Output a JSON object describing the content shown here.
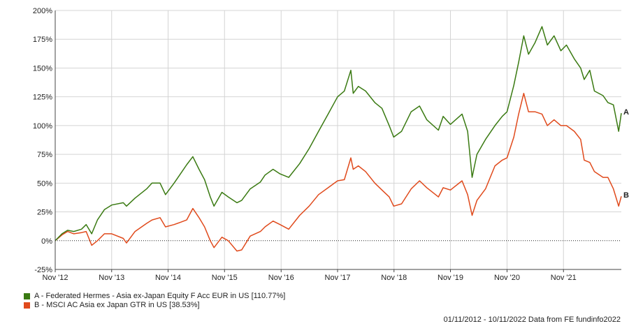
{
  "chart_data": {
    "type": "line",
    "title": "",
    "xlabel": "",
    "ylabel": "",
    "ylim": [
      -25,
      200
    ],
    "y_ticks": [
      -25,
      0,
      25,
      50,
      75,
      100,
      125,
      150,
      175,
      200
    ],
    "y_tick_labels": [
      "-25%",
      "0%",
      "25%",
      "50%",
      "75%",
      "100%",
      "125%",
      "150%",
      "175%",
      "200%"
    ],
    "x_range": [
      "2012-11-01",
      "2022-11-10"
    ],
    "x_ticks": [
      {
        "date": "2012-11-01",
        "label": "Nov '12"
      },
      {
        "date": "2013-11-01",
        "label": "Nov '13"
      },
      {
        "date": "2014-11-01",
        "label": "Nov '14"
      },
      {
        "date": "2015-11-01",
        "label": "Nov '15"
      },
      {
        "date": "2016-11-01",
        "label": "Nov '16"
      },
      {
        "date": "2017-11-01",
        "label": "Nov '17"
      },
      {
        "date": "2018-11-01",
        "label": "Nov '18"
      },
      {
        "date": "2019-11-01",
        "label": "Nov '19"
      },
      {
        "date": "2020-11-01",
        "label": "Nov '20"
      },
      {
        "date": "2021-11-01",
        "label": "Nov '21"
      }
    ],
    "grid": true,
    "zero_line": "dotted",
    "series": [
      {
        "name": "A - Federated Hermes - Asia ex-Japan Equity F Acc EUR in US [110.77%]",
        "end_label": "A",
        "color": "#3a7a12",
        "points": [
          [
            "2012-11-01",
            0
          ],
          [
            "2012-12-15",
            6
          ],
          [
            "2013-01-20",
            9
          ],
          [
            "2013-03-01",
            8
          ],
          [
            "2013-04-20",
            10
          ],
          [
            "2013-05-20",
            14
          ],
          [
            "2013-06-25",
            6
          ],
          [
            "2013-08-01",
            18
          ],
          [
            "2013-09-15",
            27
          ],
          [
            "2013-11-01",
            31
          ],
          [
            "2014-01-15",
            33
          ],
          [
            "2014-02-05",
            30
          ],
          [
            "2014-04-01",
            37
          ],
          [
            "2014-06-15",
            45
          ],
          [
            "2014-07-20",
            50
          ],
          [
            "2014-09-10",
            50
          ],
          [
            "2014-10-15",
            40
          ],
          [
            "2014-12-10",
            50
          ],
          [
            "2015-01-20",
            58
          ],
          [
            "2015-03-01",
            66
          ],
          [
            "2015-04-10",
            73
          ],
          [
            "2015-05-20",
            62
          ],
          [
            "2015-06-25",
            53
          ],
          [
            "2015-08-01",
            38
          ],
          [
            "2015-08-25",
            30
          ],
          [
            "2015-10-15",
            42
          ],
          [
            "2015-11-25",
            38
          ],
          [
            "2016-01-20",
            33
          ],
          [
            "2016-02-20",
            35
          ],
          [
            "2016-04-15",
            45
          ],
          [
            "2016-06-20",
            51
          ],
          [
            "2016-07-20",
            57
          ],
          [
            "2016-09-10",
            62
          ],
          [
            "2016-10-25",
            58
          ],
          [
            "2016-12-20",
            55
          ],
          [
            "2017-03-01",
            67
          ],
          [
            "2017-05-01",
            80
          ],
          [
            "2017-07-01",
            95
          ],
          [
            "2017-09-01",
            110
          ],
          [
            "2017-11-01",
            125
          ],
          [
            "2017-12-15",
            130
          ],
          [
            "2018-01-26",
            148
          ],
          [
            "2018-02-10",
            128
          ],
          [
            "2018-03-15",
            134
          ],
          [
            "2018-05-01",
            130
          ],
          [
            "2018-06-30",
            120
          ],
          [
            "2018-08-15",
            115
          ],
          [
            "2018-10-01",
            100
          ],
          [
            "2018-10-30",
            90
          ],
          [
            "2018-12-20",
            95
          ],
          [
            "2019-02-20",
            112
          ],
          [
            "2019-04-15",
            117
          ],
          [
            "2019-06-01",
            105
          ],
          [
            "2019-08-15",
            96
          ],
          [
            "2019-09-15",
            108
          ],
          [
            "2019-11-01",
            101
          ],
          [
            "2020-01-15",
            110
          ],
          [
            "2020-02-20",
            95
          ],
          [
            "2020-03-20",
            55
          ],
          [
            "2020-04-20",
            75
          ],
          [
            "2020-06-15",
            88
          ],
          [
            "2020-08-15",
            100
          ],
          [
            "2020-10-01",
            108
          ],
          [
            "2020-11-01",
            112
          ],
          [
            "2020-12-15",
            135
          ],
          [
            "2021-01-15",
            155
          ],
          [
            "2021-02-17",
            178
          ],
          [
            "2021-03-20",
            162
          ],
          [
            "2021-05-01",
            172
          ],
          [
            "2021-06-15",
            186
          ],
          [
            "2021-07-20",
            170
          ],
          [
            "2021-09-01",
            178
          ],
          [
            "2021-10-15",
            165
          ],
          [
            "2021-11-20",
            170
          ],
          [
            "2022-01-10",
            158
          ],
          [
            "2022-02-20",
            150
          ],
          [
            "2022-03-15",
            140
          ],
          [
            "2022-04-20",
            148
          ],
          [
            "2022-05-20",
            130
          ],
          [
            "2022-07-15",
            126
          ],
          [
            "2022-08-15",
            120
          ],
          [
            "2022-09-20",
            118
          ],
          [
            "2022-10-24",
            95
          ],
          [
            "2022-11-10",
            110.77
          ]
        ]
      },
      {
        "name": "B - MSCI AC Asia ex Japan GTR in US [38.53%]",
        "end_label": "B",
        "color": "#e04a1c",
        "points": [
          [
            "2012-11-01",
            0
          ],
          [
            "2012-12-15",
            5
          ],
          [
            "2013-01-20",
            8
          ],
          [
            "2013-03-01",
            6
          ],
          [
            "2013-04-20",
            7
          ],
          [
            "2013-05-20",
            8
          ],
          [
            "2013-06-25",
            -4
          ],
          [
            "2013-08-01",
            0
          ],
          [
            "2013-09-15",
            6
          ],
          [
            "2013-11-01",
            6
          ],
          [
            "2014-01-15",
            2
          ],
          [
            "2014-02-05",
            -2
          ],
          [
            "2014-04-01",
            8
          ],
          [
            "2014-06-15",
            15
          ],
          [
            "2014-07-20",
            18
          ],
          [
            "2014-09-10",
            20
          ],
          [
            "2014-10-15",
            12
          ],
          [
            "2014-12-10",
            14
          ],
          [
            "2015-01-20",
            16
          ],
          [
            "2015-03-01",
            18
          ],
          [
            "2015-04-10",
            28
          ],
          [
            "2015-05-20",
            20
          ],
          [
            "2015-06-25",
            12
          ],
          [
            "2015-08-01",
            0
          ],
          [
            "2015-08-25",
            -6
          ],
          [
            "2015-10-15",
            3
          ],
          [
            "2015-11-25",
            0
          ],
          [
            "2016-01-20",
            -9
          ],
          [
            "2016-02-20",
            -8
          ],
          [
            "2016-04-15",
            4
          ],
          [
            "2016-06-20",
            8
          ],
          [
            "2016-07-20",
            12
          ],
          [
            "2016-09-10",
            17
          ],
          [
            "2016-10-25",
            14
          ],
          [
            "2016-12-20",
            10
          ],
          [
            "2017-03-01",
            22
          ],
          [
            "2017-05-01",
            30
          ],
          [
            "2017-07-01",
            40
          ],
          [
            "2017-09-01",
            46
          ],
          [
            "2017-11-01",
            52
          ],
          [
            "2017-12-15",
            53
          ],
          [
            "2018-01-26",
            72
          ],
          [
            "2018-02-10",
            62
          ],
          [
            "2018-03-15",
            65
          ],
          [
            "2018-05-01",
            60
          ],
          [
            "2018-06-30",
            50
          ],
          [
            "2018-08-15",
            44
          ],
          [
            "2018-10-01",
            38
          ],
          [
            "2018-10-30",
            30
          ],
          [
            "2018-12-20",
            32
          ],
          [
            "2019-02-20",
            45
          ],
          [
            "2019-04-15",
            52
          ],
          [
            "2019-06-01",
            46
          ],
          [
            "2019-08-15",
            38
          ],
          [
            "2019-09-15",
            46
          ],
          [
            "2019-11-01",
            44
          ],
          [
            "2020-01-15",
            52
          ],
          [
            "2020-02-20",
            40
          ],
          [
            "2020-03-20",
            22
          ],
          [
            "2020-04-20",
            35
          ],
          [
            "2020-06-15",
            45
          ],
          [
            "2020-08-15",
            65
          ],
          [
            "2020-10-01",
            70
          ],
          [
            "2020-11-01",
            72
          ],
          [
            "2020-12-15",
            90
          ],
          [
            "2021-01-15",
            110
          ],
          [
            "2021-02-17",
            128
          ],
          [
            "2021-03-20",
            112
          ],
          [
            "2021-05-01",
            112
          ],
          [
            "2021-06-15",
            110
          ],
          [
            "2021-07-20",
            100
          ],
          [
            "2021-09-01",
            105
          ],
          [
            "2021-10-15",
            100
          ],
          [
            "2021-11-20",
            100
          ],
          [
            "2022-01-10",
            95
          ],
          [
            "2022-02-20",
            88
          ],
          [
            "2022-03-15",
            70
          ],
          [
            "2022-04-20",
            68
          ],
          [
            "2022-05-20",
            60
          ],
          [
            "2022-07-15",
            55
          ],
          [
            "2022-08-15",
            55
          ],
          [
            "2022-09-20",
            45
          ],
          [
            "2022-10-24",
            30
          ],
          [
            "2022-11-10",
            38.53
          ]
        ]
      }
    ]
  },
  "footer": {
    "text": "01/11/2012 - 10/11/2022 Data from FE fundinfo2022"
  }
}
